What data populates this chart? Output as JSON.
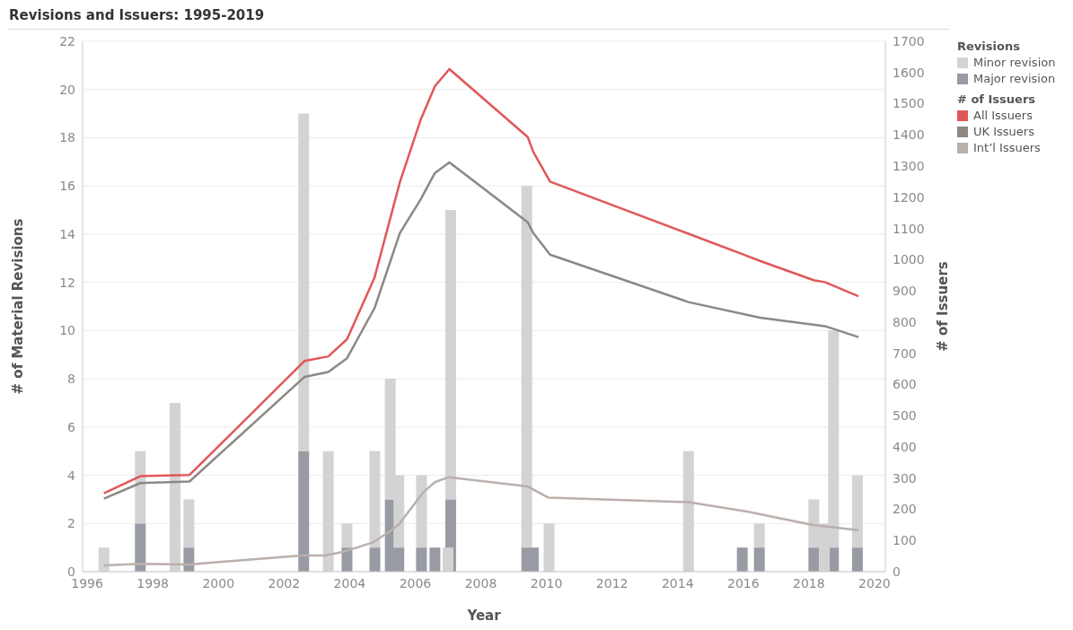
{
  "chart_data": {
    "type": "bar",
    "title": "Revisions and Issuers: 1995-2019",
    "xlabel": "Year",
    "ylabel": "# of Material Revisions",
    "y2label": "# of Issuers",
    "legend_title": [
      "Revisions",
      "# of Issuers"
    ],
    "legend": "top right",
    "grid": "y",
    "stacked": true,
    "x": [
      1996.51,
      1997.62,
      1998.68,
      1999.1,
      2002.6,
      2003.35,
      2003.92,
      2004.77,
      2005.24,
      2005.5,
      2006.19,
      2006.6,
      2007.0,
      2007.08,
      2009.4,
      2009.6,
      2010.08,
      2014.33,
      2015.97,
      2016.49,
      2018.15,
      2018.47,
      2018.75,
      2019.48
    ],
    "xlim": [
      1995.86,
      2020.33
    ],
    "xticks": [
      1996,
      1998,
      2000,
      2002,
      2004,
      2006,
      2008,
      2010,
      2012,
      2014,
      2016,
      2018,
      2020
    ],
    "ylim": [
      0,
      22
    ],
    "yticks": [
      0,
      2,
      4,
      6,
      8,
      10,
      12,
      14,
      16,
      18,
      20,
      22
    ],
    "y2lim": [
      0,
      1700
    ],
    "y2ticks": [
      0,
      100,
      200,
      300,
      400,
      500,
      600,
      700,
      800,
      900,
      1000,
      1100,
      1200,
      1300,
      1400,
      1500,
      1600,
      1700
    ],
    "series": [
      {
        "name": "Major revision",
        "color": "#989ba3",
        "values": [
          null,
          2,
          null,
          1,
          5,
          null,
          1,
          1,
          3,
          1,
          1,
          1,
          null,
          3,
          1,
          1,
          null,
          null,
          1,
          1,
          1,
          null,
          1,
          1
        ]
      },
      {
        "name": "Minor revision",
        "color": "#d3d3d3",
        "values": [
          1,
          3,
          7,
          2,
          14,
          5,
          1,
          4,
          5,
          3,
          3,
          null,
          1,
          12,
          15,
          null,
          2,
          5,
          null,
          1,
          2,
          2,
          9,
          3
        ]
      },
      {
        "name": "All Issuers",
        "type": "line",
        "axis": "y2",
        "color": "#e15759",
        "x": [
          1996.51,
          1997.62,
          1999.12,
          2002.62,
          2003.35,
          2003.92,
          2004.76,
          2005.53,
          2006.17,
          2006.6,
          2007.04,
          2009.43,
          2009.6,
          2010.11,
          2014.33,
          2015.97,
          2016.51,
          2018.15,
          2018.49,
          2019.51
        ],
        "values": [
          251,
          306,
          310,
          675,
          690,
          745,
          943,
          1248,
          1450,
          1556,
          1611,
          1393,
          1345,
          1250,
          1083,
          1018,
          996,
          934,
          928,
          883
        ]
      },
      {
        "name": "UK Issuers",
        "type": "line",
        "axis": "y2",
        "color": "#8d8884",
        "x": [
          1996.51,
          1997.62,
          1999.12,
          2002.62,
          2003.35,
          2003.92,
          2004.76,
          2005.53,
          2006.17,
          2006.6,
          2007.04,
          2009.43,
          2009.6,
          2010.11,
          2014.33,
          2016.51,
          2018.49,
          2019.51
        ],
        "values": [
          234,
          284,
          289,
          624,
          640,
          684,
          845,
          1085,
          1194,
          1278,
          1312,
          1120,
          1085,
          1016,
          864,
          814,
          787,
          752
        ]
      },
      {
        "name": "Int’l Issuers",
        "type": "line",
        "axis": "y2",
        "color": "#bab0ac",
        "x": [
          1996.51,
          1997.62,
          1999.12,
          2002.53,
          2003.24,
          2003.79,
          2004.71,
          2005.25,
          2005.52,
          2006.25,
          2006.6,
          2007.02,
          2009.43,
          2010.06,
          2014.33,
          2016.15,
          2018.15,
          2018.6,
          2019.51
        ],
        "values": [
          20,
          25,
          23,
          52,
          52,
          63,
          94,
          131,
          154,
          255,
          287,
          303,
          273,
          237,
          223,
          192,
          149,
          144,
          133
        ]
      }
    ]
  }
}
